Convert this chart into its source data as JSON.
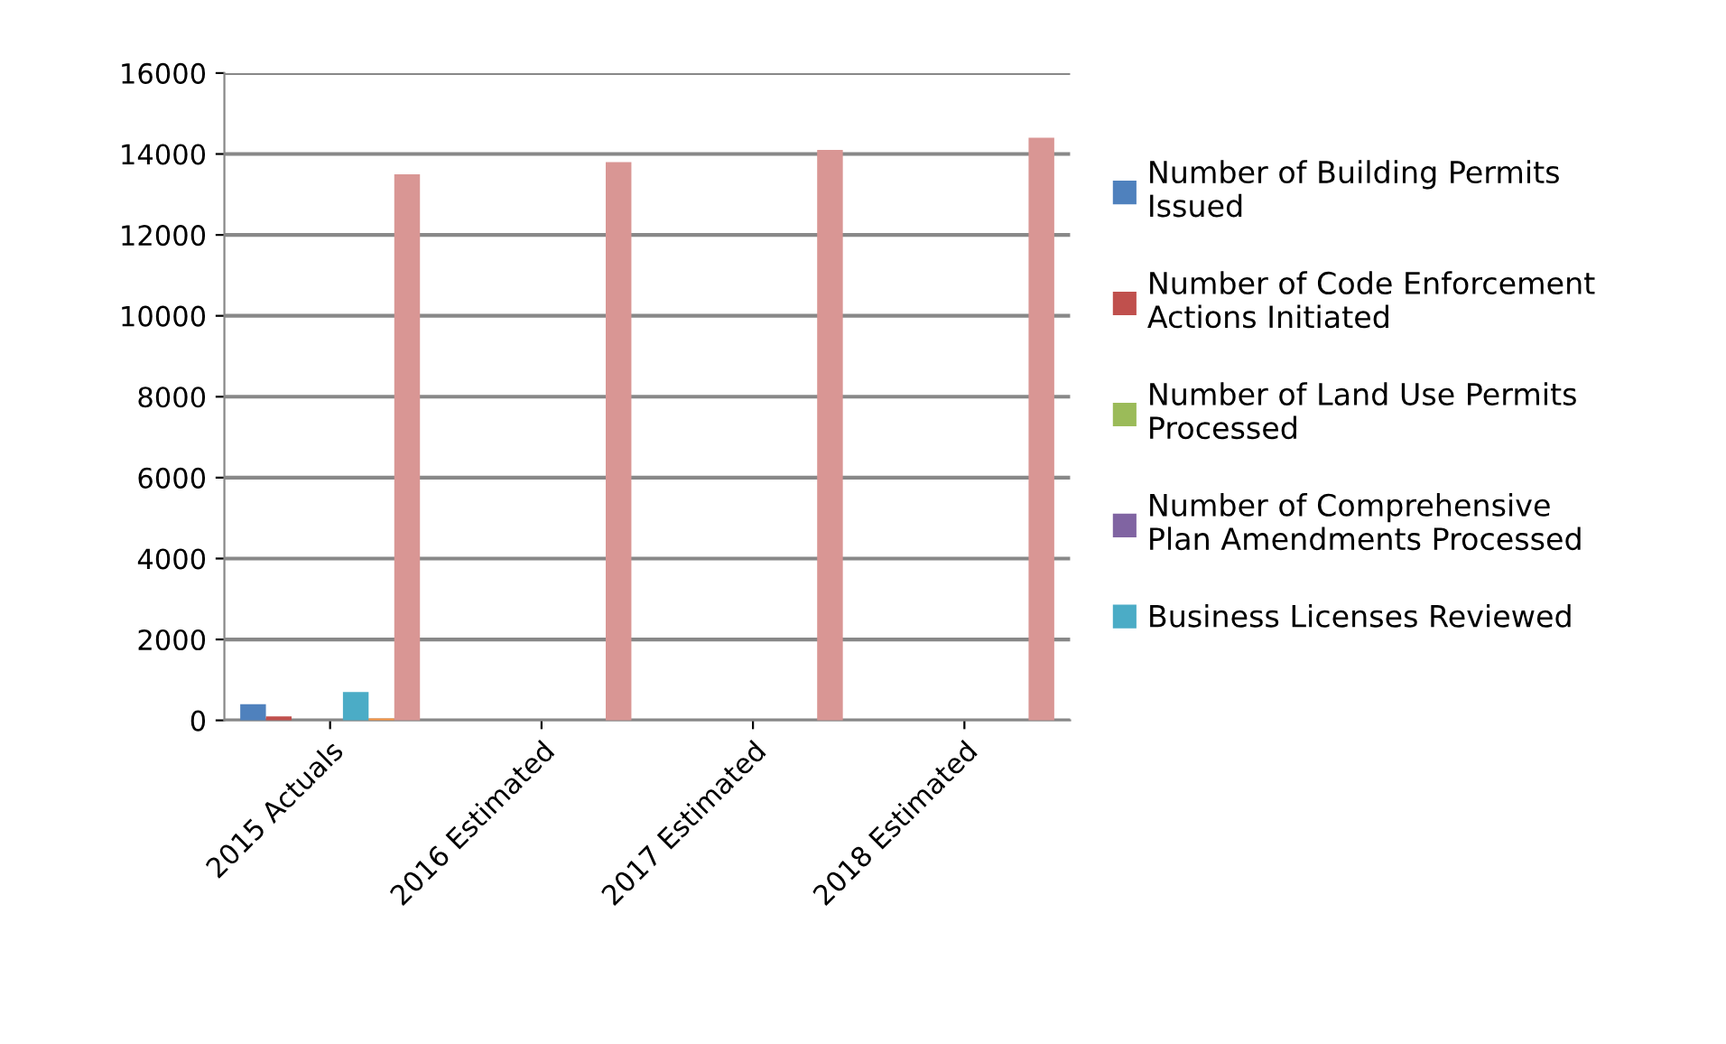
{
  "chart_data": {
    "type": "bar",
    "categories": [
      "2015 Actuals",
      "2016 Estimated",
      "2017 Estimated",
      "2018 Estimated"
    ],
    "series": [
      {
        "name": "Number of Building Permits Issued",
        "color": "#4f81bd",
        "values": [
          400,
          null,
          null,
          null
        ]
      },
      {
        "name": "Number of Code Enforcement Actions Initiated",
        "color": "#c0504d",
        "values": [
          100,
          null,
          null,
          null
        ]
      },
      {
        "name": "Number of Land Use Permits Processed",
        "color": "#9bbb59",
        "values": [
          null,
          null,
          null,
          null
        ]
      },
      {
        "name": "Number of Comprehensive Plan Amendments Processed",
        "color": "#8064a2",
        "values": [
          null,
          null,
          null,
          null
        ]
      },
      {
        "name": "Business Licenses Reviewed",
        "color": "#4bacc6",
        "values": [
          700,
          null,
          null,
          null
        ]
      },
      {
        "color": "#f79646",
        "values": [
          50,
          null,
          null,
          null
        ]
      },
      {
        "color": "#d99694",
        "values": [
          13500,
          13800,
          14100,
          14400
        ]
      }
    ],
    "ylim": [
      0,
      16000
    ],
    "yticks": [
      0,
      2000,
      4000,
      6000,
      8000,
      10000,
      12000,
      14000,
      16000
    ],
    "grid": "y",
    "legend": "right"
  }
}
